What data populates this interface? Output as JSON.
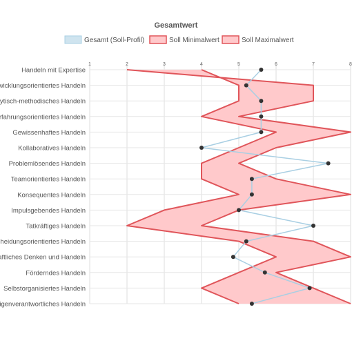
{
  "chart_data": {
    "type": "line",
    "orientation": "horizontal",
    "title": "Gesamtwert",
    "legend_position": "top",
    "grid": true,
    "xlim": [
      1,
      8
    ],
    "xticks": [
      1,
      2,
      3,
      4,
      5,
      6,
      7,
      8
    ],
    "categories": [
      "Handeln mit Expertise",
      "Entwicklungsorientiertes Handeln",
      "Analytisch-methodisches Handeln",
      "Erfahrungsorientiertes Handeln",
      "Gewissenhaftes Handeln",
      "Kollaboratives Handeln",
      "Problemlösendes Handeln",
      "Teamorientiertes Handeln",
      "Konsequentes Handeln",
      "Impulsgebendes Handeln",
      "Tatkräftiges Handeln",
      "Entscheidungsorientiertes Handeln",
      "Unternehmerisches/Wirtschaftliches Denken und Handeln",
      "Förderndes Handeln",
      "Selbstorganisiertes Handeln",
      "Eigenverantwortliches Handeln"
    ],
    "series": [
      {
        "name": "Gesamt (Soll-Profil)",
        "color": "#a9cfe3",
        "marker_color": "#333333",
        "values": [
          5.6,
          5.2,
          5.6,
          5.6,
          5.6,
          4.0,
          7.4,
          5.35,
          5.35,
          5.0,
          7.0,
          5.2,
          4.85,
          5.7,
          6.9,
          5.35
        ]
      },
      {
        "name": "Soll Minimalwert",
        "color": "#e0555a",
        "fill": "#ffc9cb",
        "values": [
          4.0,
          5.0,
          5.0,
          4.0,
          6.0,
          5.0,
          4.0,
          4.0,
          5.0,
          3.0,
          2.0,
          5.0,
          6.0,
          5.0,
          4.0,
          5.0
        ]
      },
      {
        "name": "Soll Maximalwert",
        "color": "#e0555a",
        "fill": "#ffc9cb",
        "values": [
          2.0,
          7.0,
          7.0,
          5.0,
          8.0,
          6.0,
          5.0,
          6.0,
          8.0,
          5.0,
          4.0,
          7.0,
          8.0,
          6.0,
          7.0,
          8.0
        ]
      }
    ]
  }
}
